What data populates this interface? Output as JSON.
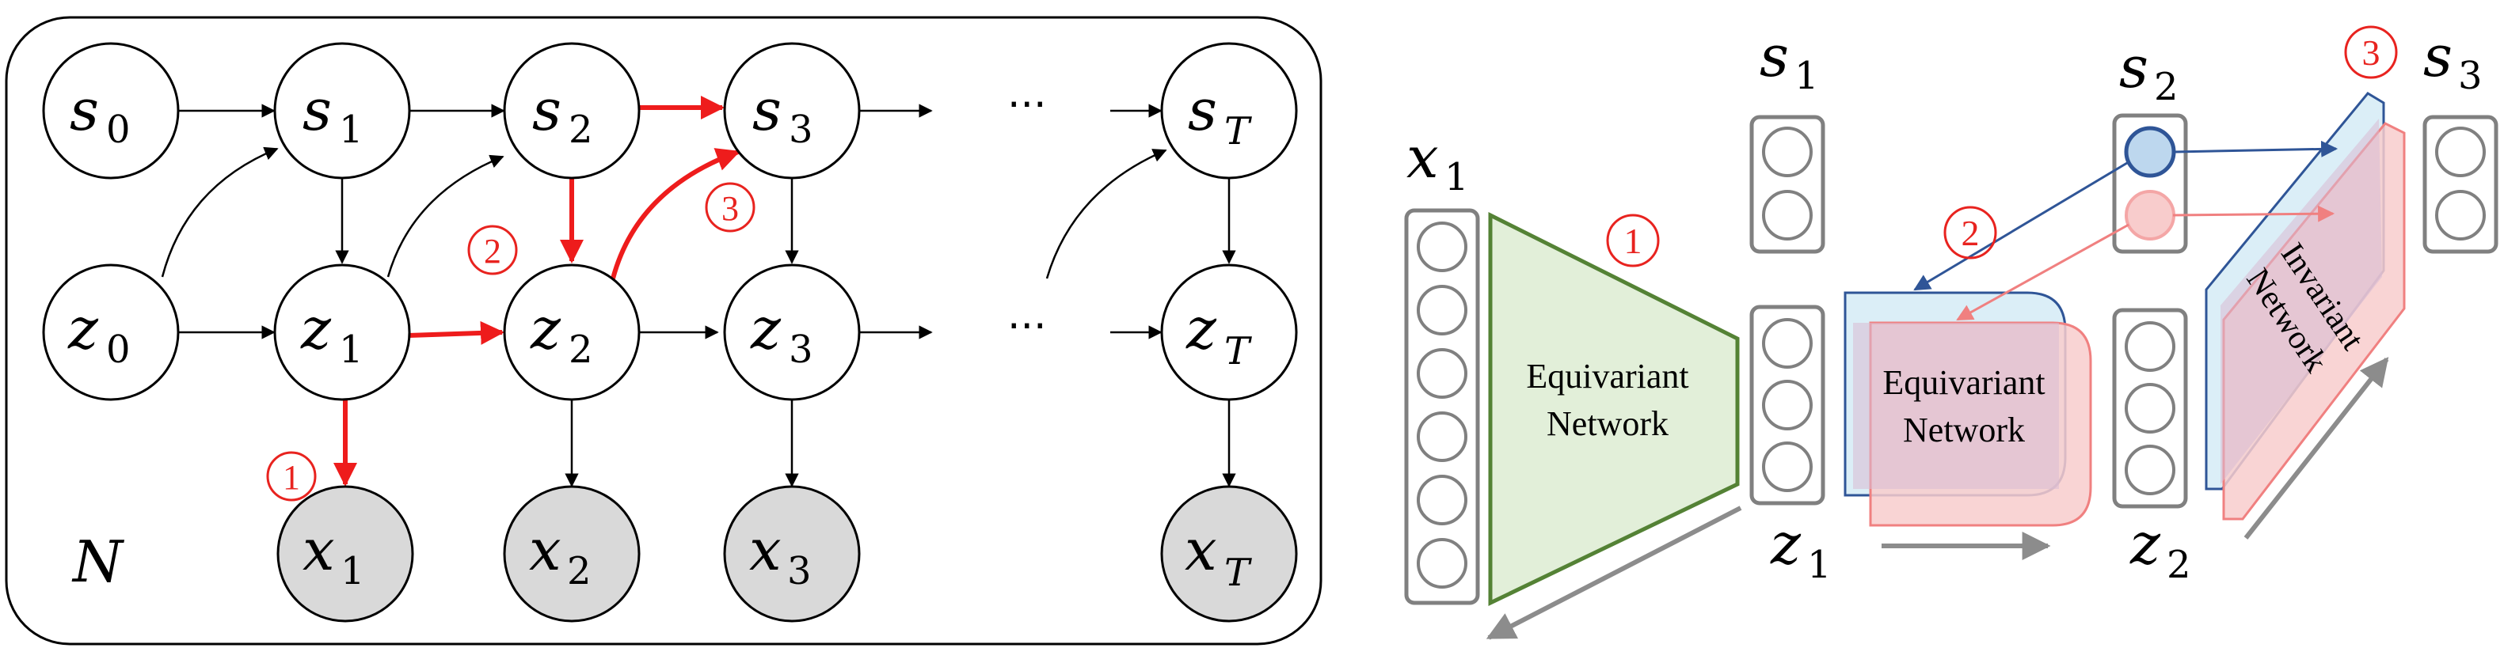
{
  "graph": {
    "plate_label": "N",
    "ellipsis": "···",
    "nodes": {
      "s0": {
        "base": "s",
        "sub": "0"
      },
      "s1": {
        "base": "s",
        "sub": "1"
      },
      "s2": {
        "base": "s",
        "sub": "2"
      },
      "s3": {
        "base": "s",
        "sub": "3"
      },
      "sT": {
        "base": "s",
        "sub": "T"
      },
      "z0": {
        "base": "z",
        "sub": "0"
      },
      "z1": {
        "base": "z",
        "sub": "1"
      },
      "z2": {
        "base": "z",
        "sub": "2"
      },
      "z3": {
        "base": "z",
        "sub": "3"
      },
      "zT": {
        "base": "z",
        "sub": "T"
      },
      "x1": {
        "base": "x",
        "sub": "1"
      },
      "x2": {
        "base": "x",
        "sub": "2"
      },
      "x3": {
        "base": "x",
        "sub": "3"
      },
      "xT": {
        "base": "x",
        "sub": "T"
      }
    },
    "steps": {
      "one": "①",
      "two": "②",
      "three": "③"
    }
  },
  "architecture": {
    "labels": {
      "x1": {
        "base": "x",
        "sub": "1"
      },
      "s1": {
        "base": "s",
        "sub": "1"
      },
      "s2": {
        "base": "s",
        "sub": "2"
      },
      "s3": {
        "base": "s",
        "sub": "3"
      },
      "z1": {
        "base": "z",
        "sub": "1"
      },
      "z2": {
        "base": "z",
        "sub": "2"
      }
    },
    "equivariant_1": {
      "line1": "Equivariant",
      "line2": "Network"
    },
    "equivariant_2": {
      "line1": "Equivariant",
      "line2": "Network"
    },
    "invariant": {
      "line1": "Invariant",
      "line2": "Network"
    },
    "steps": {
      "one": "①",
      "two": "②",
      "three": "③"
    }
  },
  "colors": {
    "red_path": "#ee1c1c",
    "blue": "#2f5597",
    "green_fill": "#e2efd9",
    "green_stroke": "#548235",
    "node_fill_observed": "#d9d9d9",
    "light_blue": "#dbeef7",
    "light_red": "#f8cccc"
  }
}
